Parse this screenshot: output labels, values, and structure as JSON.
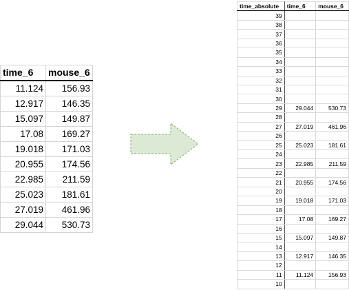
{
  "left_table": {
    "headers": [
      "time_6",
      "mouse_6"
    ],
    "rows": [
      [
        "11.124",
        "156.93"
      ],
      [
        "12.917",
        "146.35"
      ],
      [
        "15.097",
        "149.87"
      ],
      [
        "17.08",
        "169.27"
      ],
      [
        "19.018",
        "171.03"
      ],
      [
        "20.955",
        "174.56"
      ],
      [
        "22.985",
        "211.59"
      ],
      [
        "25.023",
        "181.61"
      ],
      [
        "27.019",
        "461.96"
      ],
      [
        "29.044",
        "530.73"
      ]
    ]
  },
  "arrow": {
    "fill": "#dbe9d5",
    "stroke": "#82b366",
    "direction": "right"
  },
  "right_table": {
    "headers": [
      "time_absolute",
      "time_6",
      "mouse_6"
    ],
    "rows": [
      [
        "39",
        "",
        ""
      ],
      [
        "38",
        "",
        ""
      ],
      [
        "37",
        "",
        ""
      ],
      [
        "36",
        "",
        ""
      ],
      [
        "35",
        "",
        ""
      ],
      [
        "34",
        "",
        ""
      ],
      [
        "33",
        "",
        ""
      ],
      [
        "32",
        "",
        ""
      ],
      [
        "31",
        "",
        ""
      ],
      [
        "30",
        "",
        ""
      ],
      [
        "29",
        "29.044",
        "530.73"
      ],
      [
        "28",
        "",
        ""
      ],
      [
        "27",
        "27.019",
        "461.96"
      ],
      [
        "26",
        "",
        ""
      ],
      [
        "25",
        "25.023",
        "181.61"
      ],
      [
        "24",
        "",
        ""
      ],
      [
        "23",
        "22.985",
        "211.59"
      ],
      [
        "22",
        "",
        ""
      ],
      [
        "21",
        "20.955",
        "174.56"
      ],
      [
        "20",
        "",
        ""
      ],
      [
        "19",
        "19.018",
        "171.03"
      ],
      [
        "18",
        "",
        ""
      ],
      [
        "17",
        "17.08",
        "169.27"
      ],
      [
        "16",
        "",
        ""
      ],
      [
        "15",
        "15.097",
        "149.87"
      ],
      [
        "14",
        "",
        ""
      ],
      [
        "13",
        "12.917",
        "146.35"
      ],
      [
        "12",
        "",
        ""
      ],
      [
        "11",
        "11.124",
        "156.93"
      ],
      [
        "10",
        "",
        ""
      ]
    ]
  }
}
